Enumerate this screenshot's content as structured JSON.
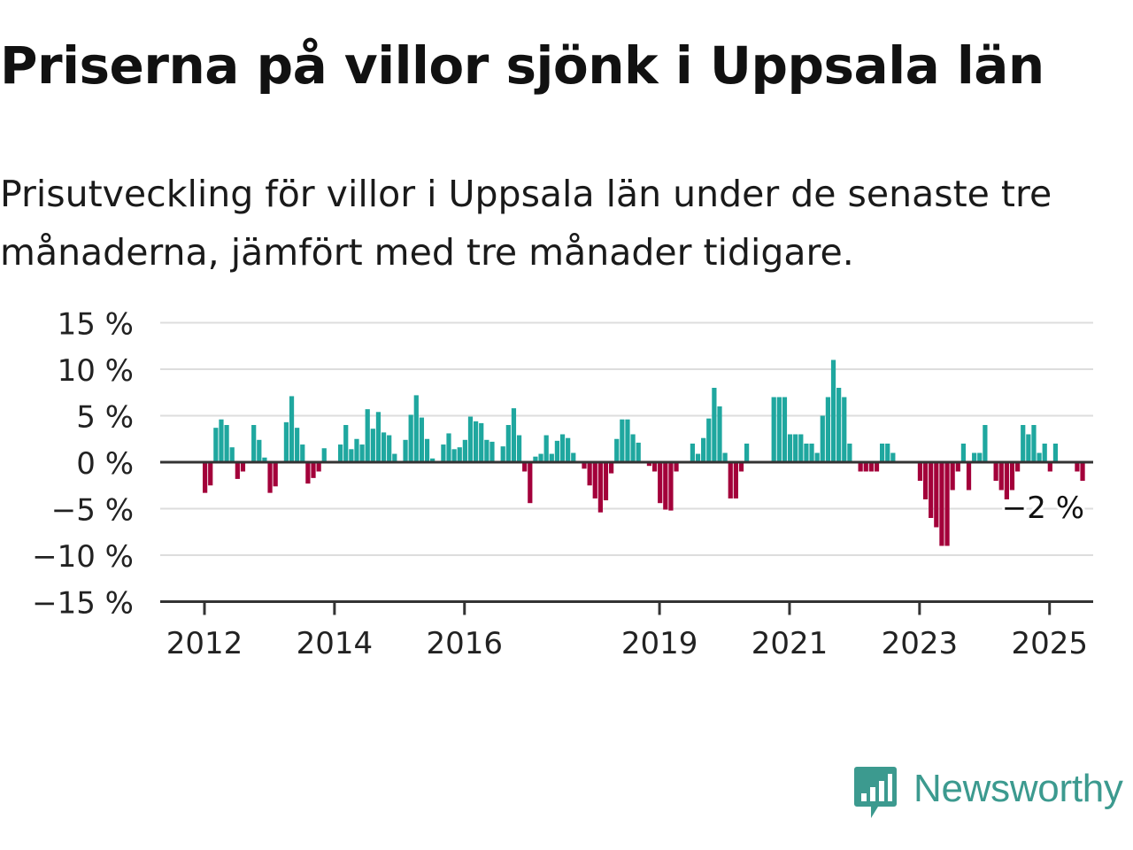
{
  "title": "Priserna på villor sjönk i Uppsala län",
  "subtitle": "Prisutveckling för villor i Uppsala län under de senaste tre månaderna, jämfört med tre månader tidigare.",
  "brand": {
    "name": "Newsworthy",
    "icon": "newsworthy-logo-icon"
  },
  "colors": {
    "positive": "#1fa79f",
    "negative": "#a3003a",
    "grid": "#dddddd",
    "axis": "#333333"
  },
  "chart_data": {
    "type": "bar",
    "xlabel": "",
    "ylabel": "",
    "ylim": [
      -15,
      15
    ],
    "yticks": [
      15,
      10,
      5,
      0,
      -5,
      -10,
      -15
    ],
    "ytick_labels": [
      "15 %",
      "10 %",
      "5 %",
      "0 %",
      "−5 %",
      "−10 %",
      "−15 %"
    ],
    "xticks": [
      "2012",
      "2014",
      "2016",
      "2019",
      "2021",
      "2023",
      "2025"
    ],
    "x_start": "2012-01",
    "grid": true,
    "annotation": "−2 %",
    "values": [
      -3.3,
      -2.5,
      3.7,
      4.6,
      4.0,
      1.6,
      -1.8,
      -1.0,
      0.0,
      4.0,
      2.4,
      0.5,
      -3.3,
      -2.6,
      0.0,
      4.3,
      7.1,
      3.7,
      1.9,
      -2.3,
      -1.7,
      -1.0,
      1.5,
      0.0,
      0.0,
      1.9,
      4.0,
      1.4,
      2.5,
      1.9,
      5.7,
      3.6,
      5.4,
      3.2,
      2.9,
      0.9,
      0.0,
      2.4,
      5.1,
      7.2,
      4.8,
      2.5,
      0.4,
      0.0,
      1.9,
      3.1,
      1.4,
      1.6,
      2.4,
      4.9,
      4.4,
      4.2,
      2.4,
      2.2,
      0.0,
      1.7,
      4.0,
      5.8,
      2.9,
      -1.0,
      -4.4,
      0.6,
      0.9,
      2.9,
      0.9,
      2.3,
      3.0,
      2.6,
      1.0,
      0.0,
      -0.7,
      -2.5,
      -3.9,
      -5.4,
      -4.1,
      -1.2,
      2.5,
      4.6,
      4.6,
      3.0,
      2.1,
      0.0,
      -0.4,
      -1.0,
      -4.4,
      -5.1,
      -5.2,
      -1.0,
      0.0,
      0.0,
      2.0,
      0.9,
      2.6,
      4.7,
      8.0,
      6.0,
      1.0,
      -3.9,
      -3.9,
      -1.0,
      2.0,
      0.0,
      0.0,
      0.0,
      0.0,
      7.0,
      7.0,
      7.0,
      3.0,
      3.0,
      3.0,
      2.0,
      2.0,
      1.0,
      5.0,
      7.0,
      11.0,
      8.0,
      7.0,
      2.0,
      0.0,
      -1.0,
      -1.0,
      -1.0,
      -1.0,
      2.0,
      2.0,
      1.0,
      0.0,
      0.0,
      0.0,
      0.0,
      -2.0,
      -4.0,
      -6.0,
      -7.0,
      -9.0,
      -9.0,
      -3.0,
      -1.0,
      2.0,
      -3.0,
      1.0,
      1.0,
      4.0,
      0.0,
      -2.0,
      -3.0,
      -4.0,
      -3.0,
      -1.0,
      4.0,
      3.0,
      4.0,
      1.0,
      2.0,
      -1.0,
      2.0,
      0.0,
      0.0,
      0.0,
      -1.0,
      -2.0
    ]
  }
}
